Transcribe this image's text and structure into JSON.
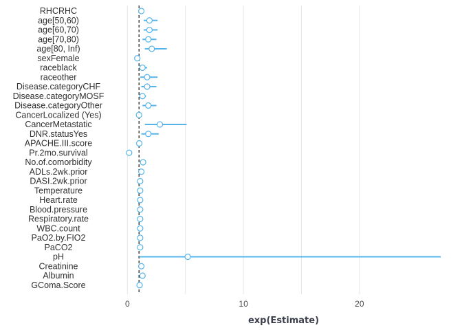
{
  "chart_data": {
    "type": "forest",
    "xlabel": "exp(Estimate)",
    "reference_value": 1,
    "xlim": [
      -1.5,
      27
    ],
    "x_ticks": [
      0,
      10,
      20
    ],
    "x_tick_labels": [
      "0",
      "10",
      "20"
    ],
    "grid": true,
    "color": "#56B4E9",
    "terms": [
      {
        "term": "RHCRHC",
        "estimate": 1.2,
        "low": 1.05,
        "high": 1.4
      },
      {
        "term": "age[50,60)",
        "estimate": 1.9,
        "low": 1.4,
        "high": 2.6
      },
      {
        "term": "age[60,70)",
        "estimate": 1.9,
        "low": 1.4,
        "high": 2.6
      },
      {
        "term": "age[70,80)",
        "estimate": 1.8,
        "low": 1.3,
        "high": 2.5
      },
      {
        "term": "age[80, Inf)",
        "estimate": 2.1,
        "low": 1.5,
        "high": 3.4
      },
      {
        "term": "sexFemale",
        "estimate": 0.85,
        "low": 0.75,
        "high": 0.95
      },
      {
        "term": "raceblack",
        "estimate": 1.3,
        "low": 1.05,
        "high": 1.7
      },
      {
        "term": "raceother",
        "estimate": 1.7,
        "low": 1.1,
        "high": 2.6
      },
      {
        "term": "Disease.categoryCHF",
        "estimate": 1.7,
        "low": 1.2,
        "high": 2.5
      },
      {
        "term": "Disease.categoryMOSF",
        "estimate": 1.3,
        "low": 1.05,
        "high": 1.6
      },
      {
        "term": "Disease.categoryOther",
        "estimate": 1.8,
        "low": 1.3,
        "high": 2.5
      },
      {
        "term": "CancerLocalized (Yes)",
        "estimate": 1.0,
        "low": 0.8,
        "high": 1.25
      },
      {
        "term": "CancerMetastatic",
        "estimate": 2.8,
        "low": 1.5,
        "high": 5.1
      },
      {
        "term": "DNR.statusYes",
        "estimate": 1.8,
        "low": 1.2,
        "high": 2.7
      },
      {
        "term": "APACHE.III.score",
        "estimate": 1.02,
        "low": 1.0,
        "high": 1.04
      },
      {
        "term": "Pr.2mo.survival",
        "estimate": 0.15,
        "low": 0.1,
        "high": 0.25
      },
      {
        "term": "No.of.comorbidity",
        "estimate": 1.35,
        "low": 1.25,
        "high": 1.45
      },
      {
        "term": "ADLs.2wk.prior",
        "estimate": 1.2,
        "low": 1.1,
        "high": 1.3
      },
      {
        "term": "DASI.2wk.prior",
        "estimate": 1.1,
        "low": 1.0,
        "high": 1.15
      },
      {
        "term": "Temperature",
        "estimate": 1.1,
        "low": 1.0,
        "high": 1.15
      },
      {
        "term": "Heart.rate",
        "estimate": 1.1,
        "low": 1.0,
        "high": 1.15
      },
      {
        "term": "Blood.pressure",
        "estimate": 1.1,
        "low": 1.0,
        "high": 1.15
      },
      {
        "term": "Respiratory.rate",
        "estimate": 1.1,
        "low": 1.0,
        "high": 1.15
      },
      {
        "term": "WBC.count",
        "estimate": 1.1,
        "low": 1.0,
        "high": 1.15
      },
      {
        "term": "PaO2.by.FIO2",
        "estimate": 1.1,
        "low": 1.0,
        "high": 1.15
      },
      {
        "term": "PaCO2",
        "estimate": 1.1,
        "low": 1.0,
        "high": 1.15
      },
      {
        "term": "pH",
        "estimate": 5.2,
        "low": 1.0,
        "high": 27
      },
      {
        "term": "Creatinine",
        "estimate": 1.2,
        "low": 1.1,
        "high": 1.3
      },
      {
        "term": "Albumin",
        "estimate": 1.3,
        "low": 1.15,
        "high": 1.45
      },
      {
        "term": "GComa.Score",
        "estimate": 1.05,
        "low": 1.0,
        "high": 1.1
      }
    ]
  }
}
